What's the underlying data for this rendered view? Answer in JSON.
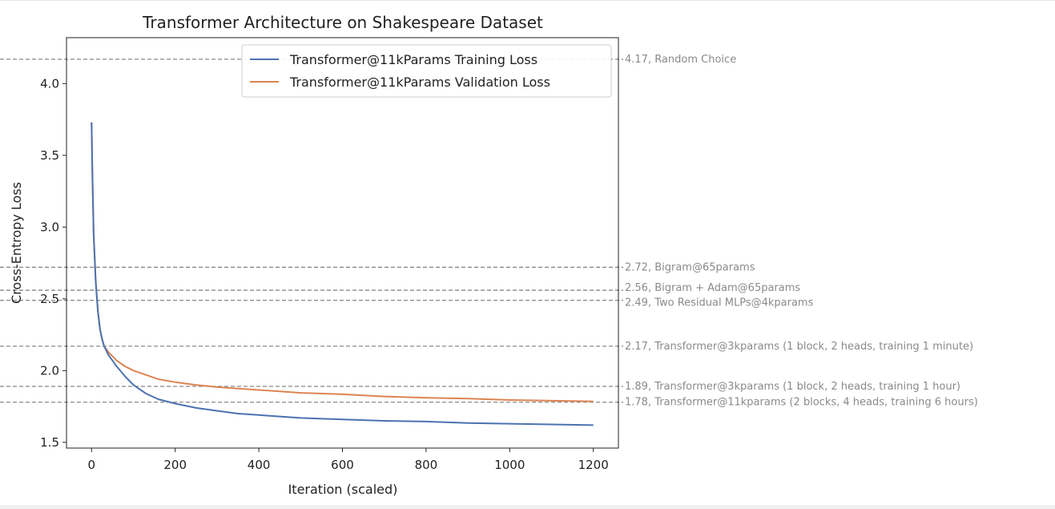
{
  "chart_data": {
    "type": "line",
    "title": "Transformer Architecture on Shakespeare Dataset",
    "xlabel": "Iteration (scaled)",
    "ylabel": "Cross-Entropy Loss",
    "xlim": [
      -60,
      1260
    ],
    "ylim": [
      1.46,
      4.32
    ],
    "xticks": [
      0,
      200,
      400,
      600,
      800,
      1000,
      1200
    ],
    "yticks": [
      1.5,
      2.0,
      2.5,
      3.0,
      3.5,
      4.0
    ],
    "xtick_labels": [
      "0",
      "200",
      "400",
      "600",
      "800",
      "1000",
      "1200"
    ],
    "ytick_labels": [
      "1.5",
      "2.0",
      "2.5",
      "3.0",
      "3.5",
      "4.0"
    ],
    "grid": false,
    "legend_position": "top-right",
    "series": [
      {
        "name": "Transformer@11kParams Training Loss",
        "color": "#4c72b0",
        "x": [
          0,
          2,
          5,
          10,
          15,
          20,
          25,
          30,
          40,
          50,
          60,
          80,
          100,
          130,
          160,
          200,
          250,
          300,
          350,
          400,
          450,
          500,
          600,
          700,
          800,
          900,
          1000,
          1100,
          1200
        ],
        "y": [
          3.73,
          3.35,
          2.95,
          2.62,
          2.42,
          2.29,
          2.22,
          2.17,
          2.11,
          2.07,
          2.03,
          1.96,
          1.9,
          1.84,
          1.8,
          1.77,
          1.74,
          1.72,
          1.7,
          1.69,
          1.68,
          1.67,
          1.66,
          1.65,
          1.645,
          1.635,
          1.63,
          1.625,
          1.62
        ]
      },
      {
        "name": "Transformer@11kParams Validation Loss",
        "color": "#dd8452",
        "x": [
          0,
          2,
          5,
          10,
          15,
          20,
          25,
          30,
          40,
          50,
          60,
          80,
          100,
          130,
          160,
          200,
          250,
          300,
          350,
          400,
          450,
          500,
          600,
          700,
          800,
          900,
          1000,
          1100,
          1200
        ],
        "y": [
          3.73,
          3.35,
          2.95,
          2.62,
          2.42,
          2.29,
          2.22,
          2.17,
          2.13,
          2.1,
          2.07,
          2.03,
          2.0,
          1.97,
          1.94,
          1.92,
          1.9,
          1.885,
          1.875,
          1.865,
          1.855,
          1.845,
          1.835,
          1.82,
          1.81,
          1.805,
          1.795,
          1.79,
          1.785
        ]
      }
    ],
    "reference_lines": [
      {
        "value": 4.17,
        "label": "4.17, Random Choice"
      },
      {
        "value": 2.72,
        "label": "2.72, Bigram@65params"
      },
      {
        "value": 2.56,
        "label": "2.56, Bigram + Adam@65params"
      },
      {
        "value": 2.49,
        "label": "2.49, Two Residual MLPs@4kparams"
      },
      {
        "value": 2.17,
        "label": "2.17, Transformer@3kparams (1 block, 2 heads, training 1 minute)"
      },
      {
        "value": 1.89,
        "label": "1.89, Transformer@3kparams (1 block, 2 heads, training 1 hour)"
      },
      {
        "value": 1.78,
        "label": "1.78, Transformer@11kparams (2 blocks, 4 heads, training 6 hours)"
      }
    ]
  }
}
